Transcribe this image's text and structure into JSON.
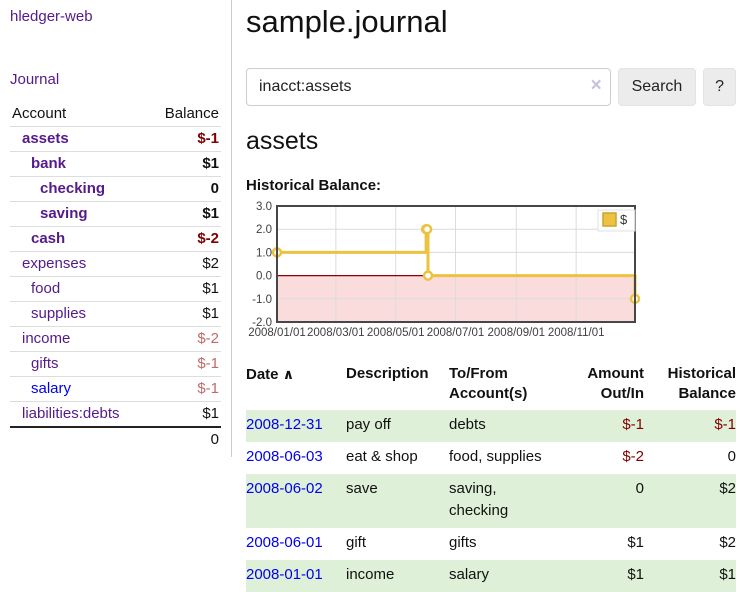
{
  "sidebar": {
    "brand": "hledger-web",
    "nav": {
      "journal": "Journal"
    },
    "accounts_table": {
      "headers": {
        "account": "Account",
        "balance": "Balance"
      },
      "rows": [
        {
          "name": "assets",
          "depth": 1,
          "balance": "$-1",
          "bold": true,
          "tone": "purple",
          "neg": "neg-strong"
        },
        {
          "name": "bank",
          "depth": 2,
          "balance": "$1",
          "bold": true,
          "tone": "purple",
          "neg": ""
        },
        {
          "name": "checking",
          "depth": 3,
          "balance": "0",
          "bold": true,
          "tone": "purple",
          "neg": ""
        },
        {
          "name": "saving",
          "depth": 3,
          "balance": "$1",
          "bold": true,
          "tone": "purple",
          "neg": ""
        },
        {
          "name": "cash",
          "depth": 2,
          "balance": "$-2",
          "bold": true,
          "tone": "purple",
          "neg": "neg-strong"
        },
        {
          "name": "expenses",
          "depth": 1,
          "balance": "$2",
          "bold": false,
          "tone": "purple",
          "neg": ""
        },
        {
          "name": "food",
          "depth": 2,
          "balance": "$1",
          "bold": false,
          "tone": "purple",
          "neg": ""
        },
        {
          "name": "supplies",
          "depth": 2,
          "balance": "$1",
          "bold": false,
          "tone": "purple",
          "neg": ""
        },
        {
          "name": "income",
          "depth": 1,
          "balance": "$-2",
          "bold": false,
          "tone": "purple",
          "neg": "neg-soft"
        },
        {
          "name": "gifts",
          "depth": 2,
          "balance": "$-1",
          "bold": false,
          "tone": "purple",
          "neg": "neg-soft"
        },
        {
          "name": "salary",
          "depth": 2,
          "balance": "$-1",
          "bold": false,
          "tone": "blue",
          "neg": "neg-soft"
        },
        {
          "name": "liabilities:debts",
          "depth": 1,
          "balance": "$1",
          "bold": false,
          "tone": "purple",
          "neg": ""
        }
      ],
      "total": "0"
    }
  },
  "main": {
    "title": "sample.journal",
    "search": {
      "value": "inacct:assets",
      "clear_icon": "×",
      "search_button": "Search",
      "help_button": "?"
    },
    "account_heading": "assets",
    "chart_label": "Historical Balance:"
  },
  "chart_data": {
    "type": "line",
    "title": "Historical Balance",
    "step": true,
    "series": [
      {
        "name": "$",
        "points": [
          {
            "x": "2008/01/01",
            "y": 1.0
          },
          {
            "x": "2008/06/01",
            "y": 2.0
          },
          {
            "x": "2008/06/02",
            "y": 2.0
          },
          {
            "x": "2008/06/03",
            "y": 0.0
          },
          {
            "x": "2008/12/31",
            "y": -1.0
          }
        ]
      }
    ],
    "xlim": [
      "2008/01/01",
      "2008/12/31"
    ],
    "ylim": [
      -2.0,
      3.0
    ],
    "yticks": [
      3.0,
      2.0,
      1.0,
      0.0,
      -1.0,
      -2.0
    ],
    "xticks": [
      "2008/01/01",
      "2008/03/01",
      "2008/05/01",
      "2008/07/01",
      "2008/09/01",
      "2008/11/01"
    ],
    "legend": {
      "label": "$",
      "position": "top-right"
    },
    "grid": true,
    "styles": {
      "line_color": "#edc240",
      "marker_fill": "#ffffff",
      "negative_fill": "#fbdcdc",
      "zero_line_color": "#8b0000",
      "grid_color": "#dcdcdc",
      "border_color": "#474747",
      "tick_text_color": "#3f3f3f",
      "legend_swatch_border": "#c9a42f"
    }
  },
  "register_table": {
    "headers": {
      "date": "Date",
      "sort_icon": "∧",
      "description": "Description",
      "accounts_l1": "To/From",
      "accounts_l2": "Account(s)",
      "amount_l1": "Amount",
      "amount_l2": "Out/In",
      "balance_l1": "Historical",
      "balance_l2": "Balance"
    },
    "rows": [
      {
        "date": "2008-12-31",
        "description": "pay off",
        "accounts": "debts",
        "amount": "$-1",
        "amount_neg": true,
        "balance": "$-1",
        "balance_neg": true,
        "shaded": true
      },
      {
        "date": "2008-06-03",
        "description": "eat & shop",
        "accounts": "food, supplies",
        "amount": "$-2",
        "amount_neg": true,
        "balance": "0",
        "balance_neg": false,
        "shaded": false
      },
      {
        "date": "2008-06-02",
        "description": "save",
        "accounts": "saving,\nchecking",
        "amount": "0",
        "amount_neg": false,
        "balance": "$2",
        "balance_neg": false,
        "shaded": true
      },
      {
        "date": "2008-06-01",
        "description": "gift",
        "accounts": "gifts",
        "amount": "$1",
        "amount_neg": false,
        "balance": "$2",
        "balance_neg": false,
        "shaded": false
      },
      {
        "date": "2008-01-01",
        "description": "income",
        "accounts": "salary",
        "amount": "$1",
        "amount_neg": false,
        "balance": "$1",
        "balance_neg": false,
        "shaded": true
      }
    ]
  }
}
